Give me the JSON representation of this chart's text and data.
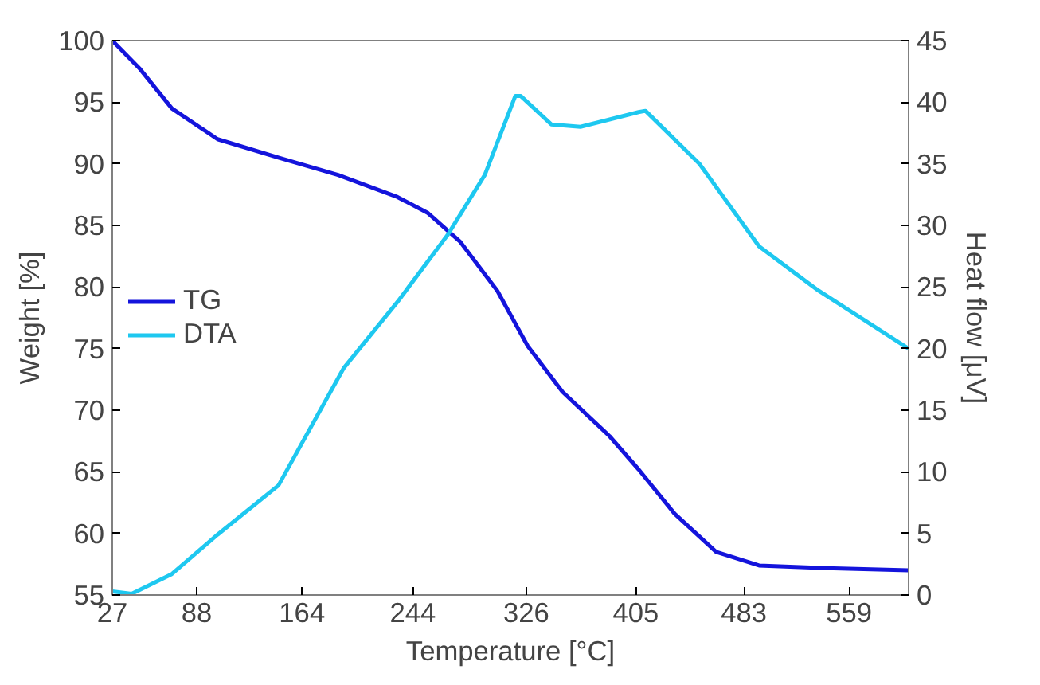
{
  "chart_data": {
    "type": "line",
    "xlabel": "Temperature [°C]",
    "ylabel": "Weight [%]",
    "y2label": "Heat flow [μV]",
    "xlim": [
      27,
      602
    ],
    "xticks": [
      27,
      88,
      164,
      244,
      326,
      405,
      483,
      559
    ],
    "ylim": [
      55,
      100
    ],
    "yticks": [
      55,
      60,
      65,
      70,
      75,
      80,
      85,
      90,
      95,
      100
    ],
    "y2lim": [
      0,
      45
    ],
    "y2ticks": [
      0,
      5,
      10,
      15,
      20,
      25,
      30,
      35,
      40,
      45
    ],
    "grid": false,
    "legend": "left",
    "line_style": "solid",
    "marker": "none",
    "series": [
      {
        "name": "TG",
        "color": "#1414dc",
        "x": [
          27,
          47,
          70,
          103,
          147,
          190,
          233,
          255,
          278,
          305,
          327,
          352,
          386,
          407,
          433,
          463,
          494,
          537,
          602
        ],
        "values": [
          100,
          97.7,
          94.5,
          92.0,
          90.5,
          89.1,
          87.3,
          86.0,
          83.7,
          79.7,
          75.2,
          71.5,
          67.9,
          65.2,
          61.6,
          58.5,
          57.4,
          57.2,
          57.0
        ]
      },
      {
        "name": "DTA",
        "color": "#1ec8f0",
        "axis": "y2",
        "x": [
          27,
          41,
          70,
          103,
          147,
          194,
          233,
          269,
          296,
          318,
          322,
          344,
          365,
          407,
          412,
          451,
          494,
          537,
          602
        ],
        "values": [
          0.3,
          0.1,
          1.7,
          4.9,
          8.9,
          18.4,
          23.8,
          29.2,
          34.1,
          40.5,
          40.5,
          38.2,
          38.0,
          39.2,
          39.3,
          35.0,
          28.3,
          24.7,
          20.0
        ]
      }
    ]
  }
}
